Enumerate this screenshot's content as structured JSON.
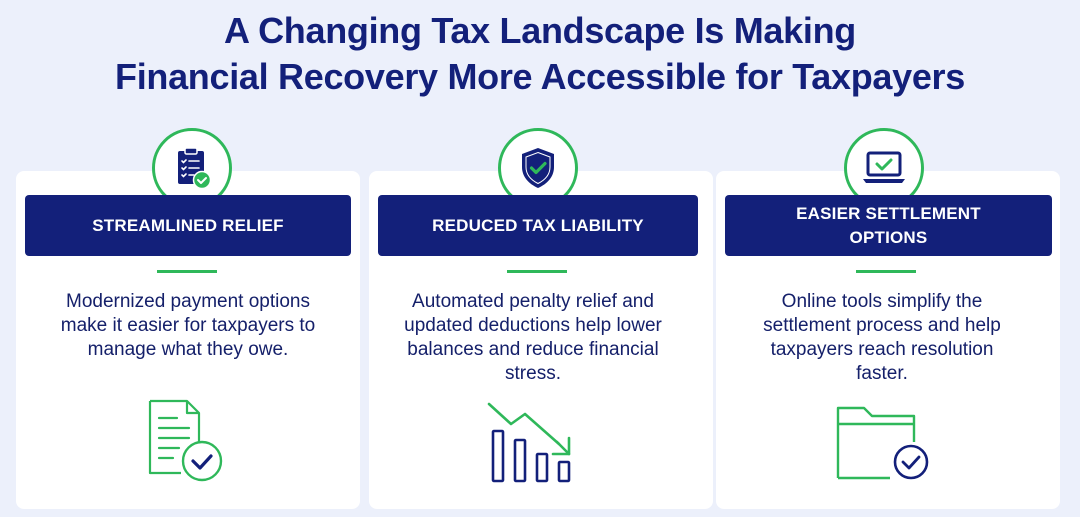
{
  "title": {
    "line1": "A Changing Tax Landscape Is Making",
    "line2": "Financial Recovery More Accessible for Taxpayers"
  },
  "colors": {
    "navy": "#13207a",
    "green": "#2fb85a",
    "background": "#ecf0fb",
    "card": "#ffffff"
  },
  "cards": [
    {
      "icon": "clipboard-check-icon",
      "heading": "STREAMLINED RELIEF",
      "description": "Modernized payment options make it easier for taxpayers to manage what they owe.",
      "illustration": "document-check-icon"
    },
    {
      "icon": "shield-check-icon",
      "heading": "REDUCED TAX LIABILITY",
      "description": "Automated penalty relief and updated deductions help lower balances and reduce financial stress.",
      "illustration": "declining-bar-chart-icon"
    },
    {
      "icon": "laptop-check-icon",
      "heading": "EASIER SETTLEMENT OPTIONS",
      "description": "Online tools simplify the settlement process and help taxpayers reach resolution faster.",
      "illustration": "folder-check-icon"
    }
  ]
}
